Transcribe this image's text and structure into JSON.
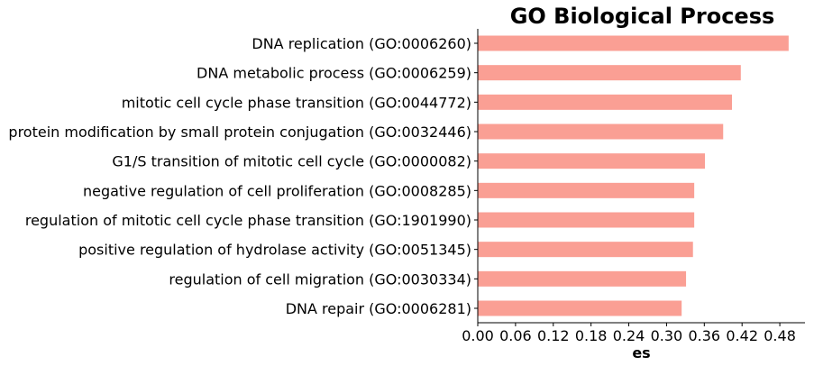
{
  "chart_data": {
    "type": "bar",
    "orientation": "horizontal",
    "title": "GO Biological Process",
    "xlabel": "es",
    "ylabel": "",
    "xlim": [
      0,
      0.52
    ],
    "xticks": [
      "0.00",
      "0.06",
      "0.12",
      "0.18",
      "0.24",
      "0.30",
      "0.36",
      "0.42",
      "0.48"
    ],
    "bar_color": "#FA9F94",
    "grid": false,
    "categories": [
      "DNA replication (GO:0006260)",
      "DNA metabolic process (GO:0006259)",
      "mitotic cell cycle phase transition (GO:0044772)",
      "protein modification by small protein conjugation (GO:0032446)",
      "G1/S transition of mitotic cell cycle (GO:0000082)",
      "negative regulation of cell proliferation (GO:0008285)",
      "regulation of mitotic cell cycle phase transition (GO:1901990)",
      "positive regulation of hydrolase activity (GO:0051345)",
      "regulation of cell migration (GO:0030334)",
      "DNA repair (GO:0006281)"
    ],
    "values": [
      0.494,
      0.418,
      0.404,
      0.39,
      0.361,
      0.344,
      0.344,
      0.342,
      0.331,
      0.324
    ]
  }
}
